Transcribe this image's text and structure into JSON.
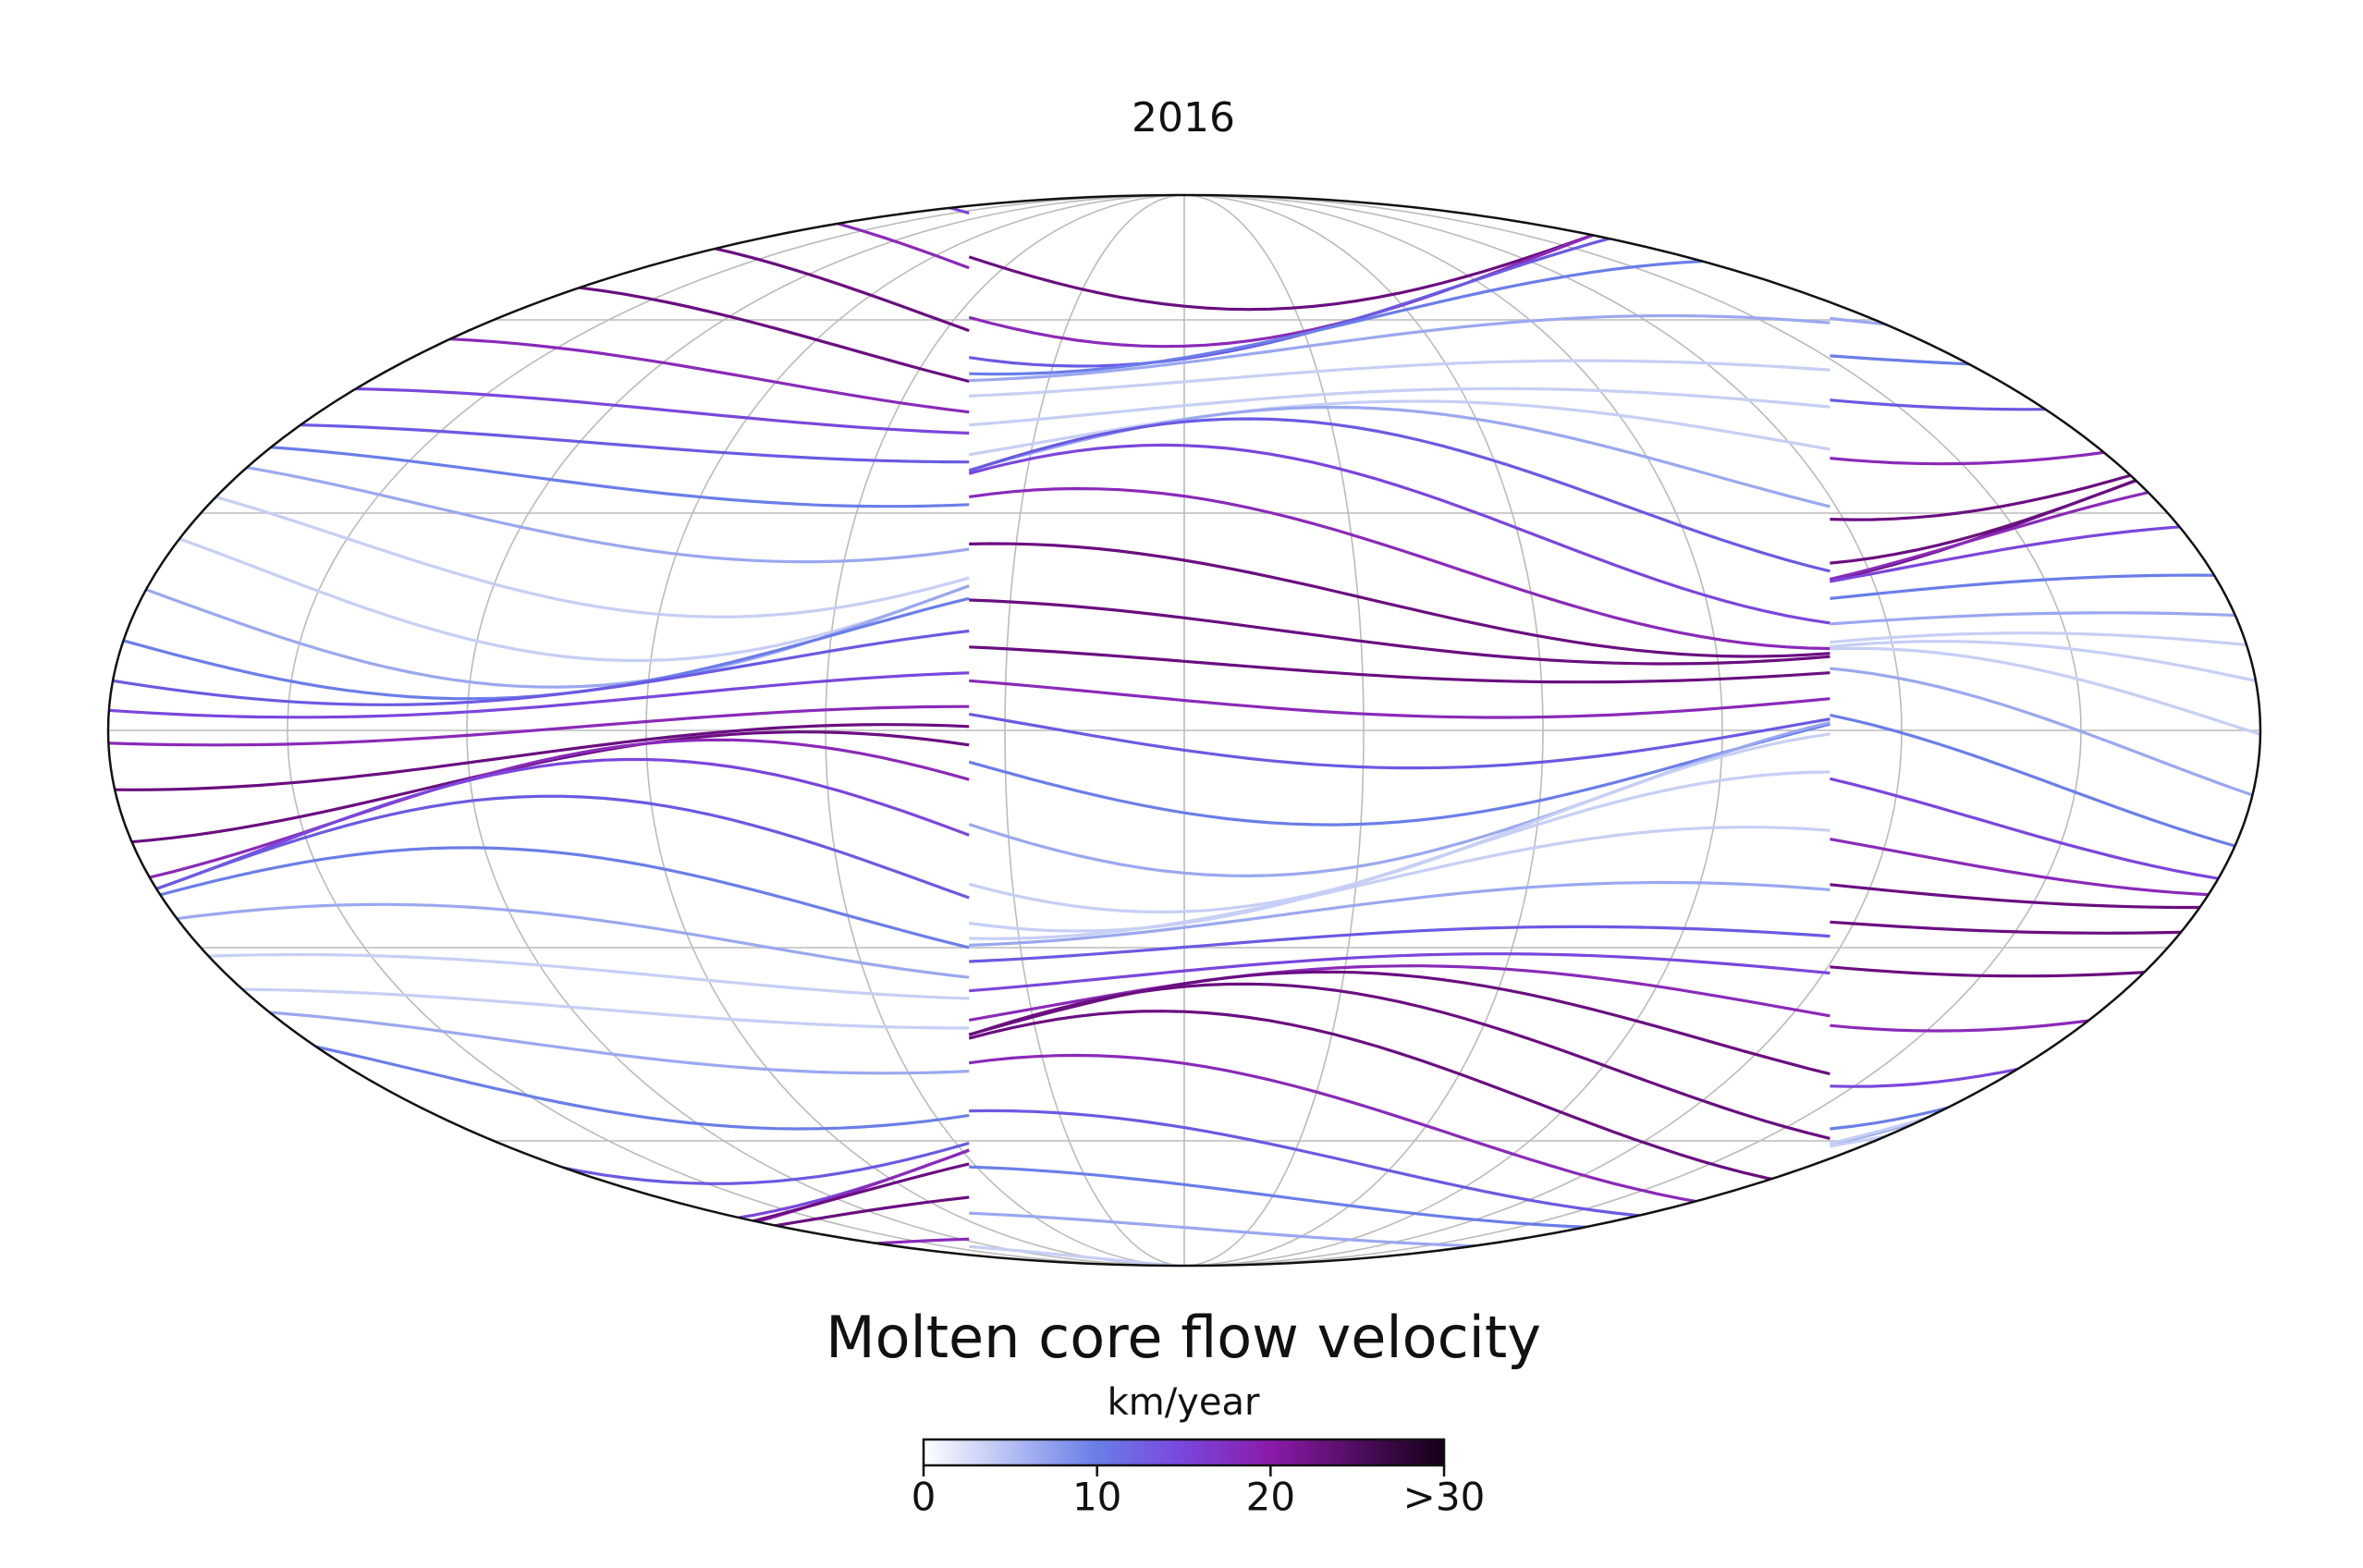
{
  "title": "2016",
  "colorbar": {
    "title": "Molten core flow velocity",
    "unit": "km/year",
    "range": [
      0,
      30
    ],
    "ticks": [
      0,
      10,
      20,
      {
        "value": 30,
        "label": ">30"
      }
    ]
  }
}
